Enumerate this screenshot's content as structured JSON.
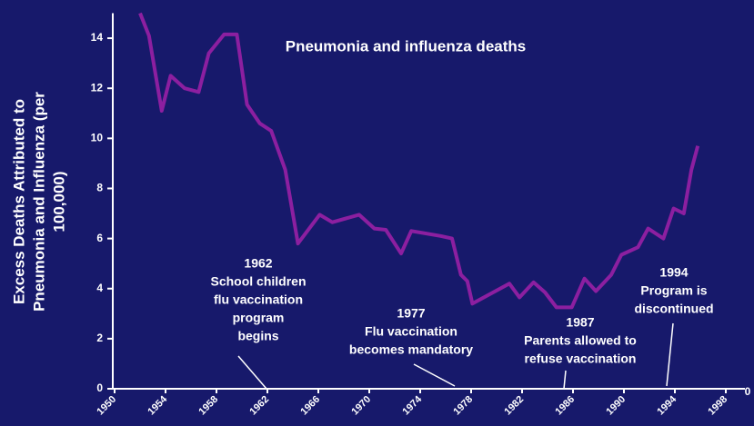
{
  "chart_data": {
    "type": "line",
    "title": "Pneumonia and influenza deaths",
    "ylabel": [
      "Excess Deaths Attributed to",
      "Pneumonia and Influenza (per",
      "100,000)"
    ],
    "x": [
      1952,
      1952.7,
      1953.7,
      1954.4,
      1955.5,
      1956.6,
      1957.4,
      1958.6,
      1959.6,
      1960.4,
      1961.4,
      1962.3,
      1963.4,
      1964.4,
      1966.1,
      1967.1,
      1969.2,
      1970.4,
      1971.3,
      1972.5,
      1973.3,
      1975.6,
      1976.5,
      1977.2,
      1977.7,
      1978.1,
      1981,
      1981.8,
      1982.9,
      1983.8,
      1984.7,
      1985.9,
      1986.9,
      1987.8,
      1989,
      1989.8,
      1991.1,
      1991.9,
      1993.1,
      1993.9,
      1994.7,
      1995.3,
      1995.8
    ],
    "values": [
      15.0,
      14.1,
      11.1,
      12.5,
      12.0,
      11.85,
      13.4,
      14.15,
      14.15,
      11.35,
      10.6,
      10.3,
      8.75,
      5.8,
      6.95,
      6.65,
      6.95,
      6.4,
      6.35,
      5.4,
      6.3,
      6.1,
      6.0,
      4.55,
      4.3,
      3.4,
      4.2,
      3.65,
      4.25,
      3.85,
      3.25,
      3.25,
      4.4,
      3.9,
      4.55,
      5.35,
      5.65,
      6.4,
      6.0,
      7.2,
      7.0,
      8.75,
      9.7
    ],
    "color": "#8c1fa0",
    "xlim": [
      1950,
      1999.5
    ],
    "xticks": [
      1950,
      1954,
      1958,
      1962,
      1966,
      1970,
      1974,
      1978,
      1982,
      1986,
      1990,
      1994,
      1998
    ],
    "ylim": [
      0,
      15
    ],
    "yticks": [
      0,
      2,
      4,
      6,
      8,
      10,
      12,
      14
    ],
    "x_end_label": "0",
    "annotations": [
      {
        "lines": [
          "1962",
          "School children",
          "flu vaccination",
          "program",
          "begins"
        ]
      },
      {
        "lines": [
          "1977",
          "Flu vaccination",
          "becomes mandatory"
        ]
      },
      {
        "lines": [
          "1987",
          "Parents allowed to",
          "refuse vaccination"
        ]
      },
      {
        "lines": [
          "1994",
          "Program is",
          "discontinued"
        ]
      }
    ]
  }
}
